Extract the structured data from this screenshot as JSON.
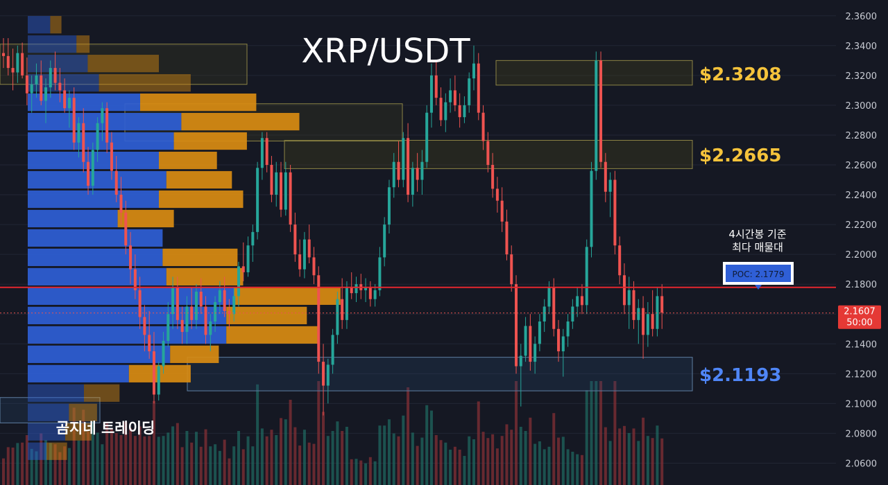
{
  "title": "XRP/USDT",
  "watermark": "곰지네 트레이딩",
  "poc_note": [
    "4시간봉 기준",
    "최다 매물대"
  ],
  "poc_label": "POC: 2.1779",
  "current_price": {
    "value": "2.1607",
    "countdown": "50:00"
  },
  "level_labels": {
    "upper": "$2.3208",
    "middle": "$2.2665",
    "lower": "$2.1193"
  },
  "colors": {
    "background": "#151823",
    "up": "#26a69a",
    "down": "#ef5350",
    "vp_blue": "#2f5fd6",
    "vp_orange": "#d98c12",
    "poc_line": "#e3262e",
    "level_yellow": "#f5c33b",
    "level_blue": "#4f86f7"
  },
  "chart_data": {
    "type": "candlestick",
    "title": "XRP/USDT",
    "timeframe_note": "4시간봉 기준",
    "ylim": [
      2.05,
      2.365
    ],
    "y_ticks": [
      "2.3600",
      "2.3400",
      "2.3200",
      "2.3000",
      "2.2800",
      "2.2600",
      "2.2400",
      "2.2200",
      "2.2000",
      "2.1800",
      "2.1600",
      "2.1400",
      "2.1200",
      "2.1000",
      "2.0800",
      "2.0600"
    ],
    "grid": true,
    "poc": 2.1779,
    "last_price": 2.1607,
    "zones": [
      {
        "label": "$2.3208",
        "low": 2.3135,
        "high": 2.33,
        "color": "yellow"
      },
      {
        "label": "$2.2665",
        "low": 2.2575,
        "high": 2.2765,
        "color": "yellow"
      },
      {
        "label": "$2.1193",
        "low": 2.1085,
        "high": 2.131,
        "color": "blue"
      }
    ],
    "candles": [
      [
        2.335,
        2.345,
        2.325,
        2.333
      ],
      [
        2.333,
        2.345,
        2.32,
        2.325
      ],
      [
        2.325,
        2.338,
        2.31,
        2.322
      ],
      [
        2.322,
        2.34,
        2.315,
        2.335
      ],
      [
        2.335,
        2.342,
        2.318,
        2.32
      ],
      [
        2.32,
        2.332,
        2.3,
        2.308
      ],
      [
        2.308,
        2.32,
        2.295,
        2.314
      ],
      [
        2.314,
        2.328,
        2.305,
        2.32
      ],
      [
        2.32,
        2.33,
        2.3,
        2.303
      ],
      [
        2.303,
        2.318,
        2.288,
        2.312
      ],
      [
        2.312,
        2.33,
        2.305,
        2.325
      ],
      [
        2.325,
        2.336,
        2.31,
        2.315
      ],
      [
        2.315,
        2.325,
        2.302,
        2.31
      ],
      [
        2.31,
        2.318,
        2.295,
        2.298
      ],
      [
        2.298,
        2.31,
        2.285,
        2.305
      ],
      [
        2.305,
        2.312,
        2.27,
        2.275
      ],
      [
        2.275,
        2.292,
        2.265,
        2.288
      ],
      [
        2.288,
        2.298,
        2.255,
        2.262
      ],
      [
        2.262,
        2.272,
        2.24,
        2.246
      ],
      [
        2.246,
        2.275,
        2.24,
        2.27
      ],
      [
        2.27,
        2.292,
        2.262,
        2.288
      ],
      [
        2.288,
        2.302,
        2.276,
        2.298
      ],
      [
        2.298,
        2.302,
        2.268,
        2.275
      ],
      [
        2.275,
        2.282,
        2.25,
        2.256
      ],
      [
        2.256,
        2.266,
        2.235,
        2.24
      ],
      [
        2.24,
        2.252,
        2.22,
        2.228
      ],
      [
        2.228,
        2.236,
        2.2,
        2.206
      ],
      [
        2.206,
        2.215,
        2.18,
        2.19
      ],
      [
        2.19,
        2.2,
        2.17,
        2.176
      ],
      [
        2.176,
        2.185,
        2.15,
        2.158
      ],
      [
        2.158,
        2.166,
        2.135,
        2.146
      ],
      [
        2.146,
        2.162,
        2.13,
        2.135
      ],
      [
        2.135,
        2.148,
        2.1,
        2.106
      ],
      [
        2.106,
        2.128,
        2.102,
        2.125
      ],
      [
        2.125,
        2.148,
        2.12,
        2.142
      ],
      [
        2.142,
        2.168,
        2.138,
        2.16
      ],
      [
        2.16,
        2.185,
        2.15,
        2.178
      ],
      [
        2.178,
        2.185,
        2.15,
        2.156
      ],
      [
        2.156,
        2.165,
        2.14,
        2.148
      ],
      [
        2.148,
        2.172,
        2.14,
        2.165
      ],
      [
        2.165,
        2.178,
        2.15,
        2.156
      ],
      [
        2.156,
        2.18,
        2.15,
        2.175
      ],
      [
        2.175,
        2.184,
        2.16,
        2.165
      ],
      [
        2.165,
        2.172,
        2.14,
        2.146
      ],
      [
        2.146,
        2.16,
        2.135,
        2.155
      ],
      [
        2.155,
        2.172,
        2.148,
        2.168
      ],
      [
        2.168,
        2.182,
        2.16,
        2.176
      ],
      [
        2.176,
        2.185,
        2.158,
        2.162
      ],
      [
        2.162,
        2.17,
        2.15,
        2.16
      ],
      [
        2.16,
        2.178,
        2.155,
        2.172
      ],
      [
        2.172,
        2.195,
        2.165,
        2.192
      ],
      [
        2.192,
        2.208,
        2.182,
        2.188
      ],
      [
        2.188,
        2.212,
        2.185,
        2.206
      ],
      [
        2.206,
        2.22,
        2.195,
        2.215
      ],
      [
        2.215,
        2.262,
        2.21,
        2.258
      ],
      [
        2.258,
        2.282,
        2.25,
        2.278
      ],
      [
        2.278,
        2.282,
        2.255,
        2.26
      ],
      [
        2.26,
        2.266,
        2.235,
        2.24
      ],
      [
        2.24,
        2.262,
        2.232,
        2.255
      ],
      [
        2.255,
        2.262,
        2.225,
        2.23
      ],
      [
        2.23,
        2.262,
        2.226,
        2.255
      ],
      [
        2.255,
        2.26,
        2.215,
        2.22
      ],
      [
        2.22,
        2.228,
        2.195,
        2.2
      ],
      [
        2.2,
        2.21,
        2.185,
        2.19
      ],
      [
        2.19,
        2.215,
        2.184,
        2.21
      ],
      [
        2.21,
        2.22,
        2.194,
        2.198
      ],
      [
        2.198,
        2.205,
        2.18,
        2.186
      ],
      [
        2.186,
        2.192,
        2.12,
        2.128
      ],
      [
        2.128,
        2.14,
        2.092,
        2.112
      ],
      [
        2.112,
        2.13,
        2.1,
        2.126
      ],
      [
        2.126,
        2.15,
        2.12,
        2.146
      ],
      [
        2.146,
        2.175,
        2.14,
        2.17
      ],
      [
        2.17,
        2.184,
        2.15,
        2.156
      ],
      [
        2.156,
        2.182,
        2.15,
        2.178
      ],
      [
        2.178,
        2.188,
        2.17,
        2.174
      ],
      [
        2.174,
        2.185,
        2.168,
        2.18
      ],
      [
        2.18,
        2.187,
        2.17,
        2.176
      ],
      [
        2.176,
        2.184,
        2.168,
        2.178
      ],
      [
        2.178,
        2.182,
        2.165,
        2.17
      ],
      [
        2.17,
        2.18,
        2.165,
        2.176
      ],
      [
        2.176,
        2.205,
        2.172,
        2.198
      ],
      [
        2.198,
        2.225,
        2.192,
        2.22
      ],
      [
        2.22,
        2.25,
        2.214,
        2.245
      ],
      [
        2.245,
        2.268,
        2.238,
        2.262
      ],
      [
        2.262,
        2.276,
        2.245,
        2.25
      ],
      [
        2.25,
        2.282,
        2.245,
        2.278
      ],
      [
        2.278,
        2.288,
        2.235,
        2.24
      ],
      [
        2.24,
        2.262,
        2.232,
        2.258
      ],
      [
        2.258,
        2.268,
        2.242,
        2.25
      ],
      [
        2.25,
        2.27,
        2.24,
        2.262
      ],
      [
        2.262,
        2.3,
        2.258,
        2.295
      ],
      [
        2.295,
        2.328,
        2.285,
        2.32
      ],
      [
        2.32,
        2.33,
        2.3,
        2.305
      ],
      [
        2.305,
        2.312,
        2.286,
        2.29
      ],
      [
        2.29,
        2.308,
        2.282,
        2.302
      ],
      [
        2.302,
        2.318,
        2.295,
        2.31
      ],
      [
        2.31,
        2.32,
        2.296,
        2.3
      ],
      [
        2.3,
        2.308,
        2.285,
        2.292
      ],
      [
        2.292,
        2.306,
        2.288,
        2.3
      ],
      [
        2.3,
        2.322,
        2.295,
        2.318
      ],
      [
        2.318,
        2.34,
        2.31,
        2.328
      ],
      [
        2.328,
        2.335,
        2.29,
        2.295
      ],
      [
        2.295,
        2.3,
        2.27,
        2.276
      ],
      [
        2.276,
        2.282,
        2.255,
        2.26
      ],
      [
        2.26,
        2.268,
        2.238,
        2.244
      ],
      [
        2.244,
        2.252,
        2.228,
        2.236
      ],
      [
        2.236,
        2.245,
        2.215,
        2.222
      ],
      [
        2.222,
        2.23,
        2.196,
        2.2
      ],
      [
        2.2,
        2.206,
        2.175,
        2.18
      ],
      [
        2.18,
        2.186,
        2.12,
        2.125
      ],
      [
        2.125,
        2.14,
        2.098,
        2.132
      ],
      [
        2.132,
        2.158,
        2.128,
        2.152
      ],
      [
        2.152,
        2.16,
        2.122,
        2.128
      ],
      [
        2.128,
        2.145,
        2.12,
        2.14
      ],
      [
        2.14,
        2.16,
        2.135,
        2.155
      ],
      [
        2.155,
        2.17,
        2.148,
        2.165
      ],
      [
        2.165,
        2.182,
        2.16,
        2.178
      ],
      [
        2.178,
        2.184,
        2.145,
        2.15
      ],
      [
        2.15,
        2.156,
        2.128,
        2.135
      ],
      [
        2.135,
        2.15,
        2.118,
        2.145
      ],
      [
        2.145,
        2.16,
        2.138,
        2.155
      ],
      [
        2.155,
        2.17,
        2.15,
        2.165
      ],
      [
        2.165,
        2.178,
        2.158,
        2.172
      ],
      [
        2.172,
        2.18,
        2.16,
        2.166
      ],
      [
        2.166,
        2.21,
        2.16,
        2.205
      ],
      [
        2.205,
        2.262,
        2.198,
        2.256
      ],
      [
        2.256,
        2.336,
        2.25,
        2.33
      ],
      [
        2.33,
        2.336,
        2.258,
        2.262
      ],
      [
        2.262,
        2.268,
        2.235,
        2.242
      ],
      [
        2.242,
        2.255,
        2.225,
        2.25
      ],
      [
        2.25,
        2.256,
        2.2,
        2.206
      ],
      [
        2.206,
        2.212,
        2.18,
        2.186
      ],
      [
        2.186,
        2.194,
        2.16,
        2.166
      ],
      [
        2.166,
        2.185,
        2.15,
        2.176
      ],
      [
        2.176,
        2.182,
        2.15,
        2.156
      ],
      [
        2.156,
        2.17,
        2.14,
        2.164
      ],
      [
        2.164,
        2.172,
        2.13,
        2.146
      ],
      [
        2.146,
        2.168,
        2.138,
        2.16
      ],
      [
        2.16,
        2.176,
        2.145,
        2.15
      ],
      [
        2.15,
        2.178,
        2.145,
        2.172
      ],
      [
        2.172,
        2.18,
        2.15,
        2.161
      ]
    ],
    "volume_profile": [
      {
        "price": 2.354,
        "buy": 0.06,
        "sell": 0.06
      },
      {
        "price": 2.341,
        "buy": 0.13,
        "sell": 0.1
      },
      {
        "price": 2.328,
        "buy": 0.16,
        "sell": 0.27
      },
      {
        "price": 2.315,
        "buy": 0.19,
        "sell": 0.34
      },
      {
        "price": 2.302,
        "buy": 0.3,
        "sell": 0.46
      },
      {
        "price": 2.289,
        "buy": 0.41,
        "sell": 0.52
      },
      {
        "price": 2.276,
        "buy": 0.39,
        "sell": 0.39
      },
      {
        "price": 2.263,
        "buy": 0.35,
        "sell": 0.33
      },
      {
        "price": 2.25,
        "buy": 0.37,
        "sell": 0.36
      },
      {
        "price": 2.237,
        "buy": 0.35,
        "sell": 0.4
      },
      {
        "price": 2.224,
        "buy": 0.24,
        "sell": 0.27
      },
      {
        "price": 2.211,
        "buy": 0.36,
        "sell": 0.15
      },
      {
        "price": 2.198,
        "buy": 0.36,
        "sell": 0.38
      },
      {
        "price": 2.185,
        "buy": 0.37,
        "sell": 0.39
      },
      {
        "price": 2.172,
        "buy": 0.55,
        "sell": 0.56
      },
      {
        "price": 2.159,
        "buy": 0.53,
        "sell": 0.48
      },
      {
        "price": 2.146,
        "buy": 0.53,
        "sell": 0.51
      },
      {
        "price": 2.133,
        "buy": 0.38,
        "sell": 0.32
      },
      {
        "price": 2.12,
        "buy": 0.27,
        "sell": 0.3
      },
      {
        "price": 2.107,
        "buy": 0.15,
        "sell": 0.17
      },
      {
        "price": 2.094,
        "buy": 0.11,
        "sell": 0.13
      },
      {
        "price": 2.081,
        "buy": 0.1,
        "sell": 0.12
      },
      {
        "price": 2.068,
        "buy": 0.05,
        "sell": 0.08
      }
    ]
  }
}
